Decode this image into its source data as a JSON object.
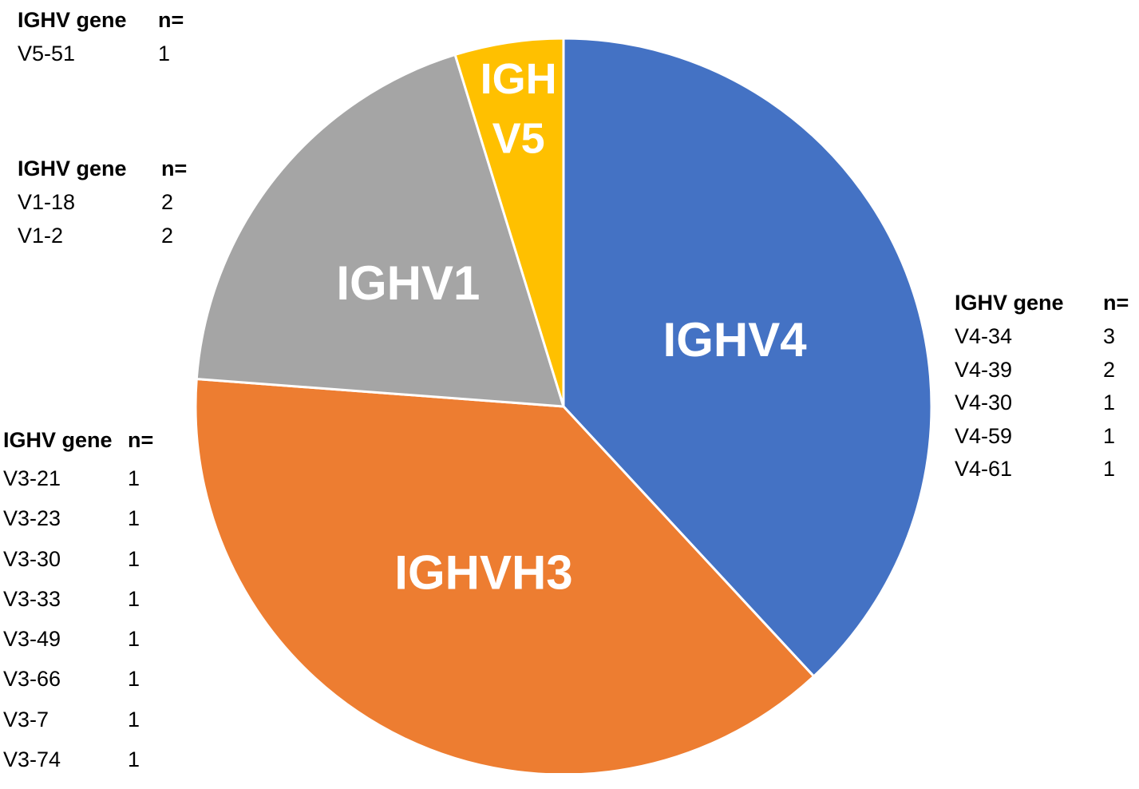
{
  "chart_data": {
    "type": "pie",
    "start_angle_deg": 0,
    "direction": "clockwise",
    "slices": [
      {
        "label": "IGHV4",
        "value": 8,
        "color": "#4472C4"
      },
      {
        "label": "IGHVH3",
        "value": 8,
        "color": "#ED7D31"
      },
      {
        "label": "IGHV1",
        "value": 4,
        "color": "#A5A5A5"
      },
      {
        "label": "IGH V5",
        "value": 1,
        "color": "#FFC000"
      }
    ]
  },
  "tables": {
    "v5": {
      "header": {
        "gene": "IGHV gene",
        "n": "n="
      },
      "rows": [
        {
          "gene": "V5-51",
          "n": "1"
        }
      ]
    },
    "v1": {
      "header": {
        "gene": "IGHV gene",
        "n": "n="
      },
      "rows": [
        {
          "gene": "V1-18",
          "n": "2"
        },
        {
          "gene": "V1-2",
          "n": "2"
        }
      ]
    },
    "v3": {
      "header": {
        "gene": "IGHV gene",
        "n": "n="
      },
      "rows": [
        {
          "gene": "V3-21",
          "n": "1"
        },
        {
          "gene": "V3-23",
          "n": "1"
        },
        {
          "gene": "V3-30",
          "n": "1"
        },
        {
          "gene": "V3-33",
          "n": "1"
        },
        {
          "gene": "V3-49",
          "n": "1"
        },
        {
          "gene": "V3-66",
          "n": "1"
        },
        {
          "gene": "V3-7",
          "n": "1"
        },
        {
          "gene": "V3-74",
          "n": "1"
        }
      ]
    },
    "v4": {
      "header": {
        "gene": "IGHV gene",
        "n": "n="
      },
      "rows": [
        {
          "gene": "V4-34",
          "n": "3"
        },
        {
          "gene": "V4-39",
          "n": "2"
        },
        {
          "gene": "V4-30",
          "n": "1"
        },
        {
          "gene": "V4-59",
          "n": "1"
        },
        {
          "gene": "V4-61",
          "n": "1"
        }
      ]
    }
  }
}
